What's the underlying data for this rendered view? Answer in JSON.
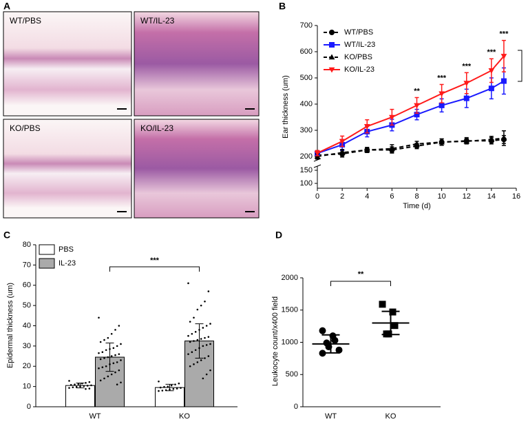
{
  "images": {
    "panel_label": "A",
    "captions": [
      "WT/PBS",
      "WT/IL-23",
      "KO/PBS",
      "KO/IL-23"
    ]
  },
  "chart_data": [
    {
      "type": "line",
      "panel_label": "B",
      "y_label": "Ear thickness (um)",
      "x_label": "Time (d)",
      "x": [
        0,
        2,
        4,
        6,
        8,
        10,
        12,
        14,
        15
      ],
      "xlim": [
        0,
        16
      ],
      "xticks": [
        0,
        2,
        4,
        6,
        8,
        10,
        12,
        14,
        16
      ],
      "ylim": [
        200,
        700
      ],
      "yticks": [
        200,
        300,
        400,
        500,
        600,
        700
      ],
      "ylim_lower": [
        100,
        150
      ],
      "yticks_lower": [
        100,
        150
      ],
      "series": [
        {
          "name": "WT/PBS",
          "color": "#000000",
          "marker": "circle",
          "dashed": true,
          "values": [
            205,
            210,
            225,
            225,
            240,
            255,
            260,
            260,
            265
          ],
          "errors": [
            10,
            12,
            10,
            12,
            10,
            12,
            12,
            12,
            15
          ]
        },
        {
          "name": "WT/IL-23",
          "color": "#1a1aff",
          "marker": "square",
          "dashed": false,
          "values": [
            212,
            245,
            295,
            320,
            360,
            395,
            422,
            460,
            488
          ],
          "errors": [
            10,
            20,
            20,
            22,
            20,
            25,
            35,
            40,
            50
          ]
        },
        {
          "name": "KO/PBS",
          "color": "#000000",
          "marker": "triangle",
          "dashed": true,
          "values": [
            200,
            215,
            225,
            230,
            248,
            255,
            258,
            265,
            270
          ],
          "errors": [
            10,
            12,
            10,
            15,
            10,
            12,
            10,
            12,
            28
          ]
        },
        {
          "name": "KO/IL-23",
          "color": "#ff1a1a",
          "marker": "triangle-down",
          "dashed": false,
          "values": [
            213,
            258,
            315,
            350,
            395,
            440,
            480,
            528,
            583
          ],
          "errors": [
            10,
            20,
            25,
            30,
            30,
            35,
            40,
            45,
            60
          ]
        }
      ],
      "significance": [
        {
          "x": 8,
          "label": "**"
        },
        {
          "x": 10,
          "label": "***"
        },
        {
          "x": 12,
          "label": "***"
        },
        {
          "x": 14,
          "label": "***"
        },
        {
          "x": 15,
          "label": "***"
        }
      ]
    },
    {
      "type": "bar",
      "panel_label": "C",
      "y_label": "Epidermal thickness (um)",
      "categories": [
        "WT",
        "KO"
      ],
      "ylim": [
        0,
        80
      ],
      "yticks": [
        0,
        10,
        20,
        30,
        40,
        50,
        60,
        70,
        80
      ],
      "series": [
        {
          "name": "PBS",
          "color": "#ffffff",
          "values": [
            10.5,
            9.5
          ],
          "errors": [
            1.2,
            1.6
          ],
          "points": [
            [
              12.8,
              12.2,
              11.8,
              11.5,
              11.2,
              11,
              10.8,
              10.6,
              10.4,
              10.2,
              10,
              9.8,
              9.6,
              9.3,
              9,
              8.8
            ],
            [
              12.5,
              11.5,
              11,
              10.5,
              10,
              9.8,
              9.5,
              9.3,
              9,
              8.8,
              8.5,
              8.2,
              8,
              7.8
            ]
          ]
        },
        {
          "name": "IL-23",
          "color": "#aaaaaa",
          "values": [
            24.5,
            32.5
          ],
          "errors": [
            7,
            8.5
          ],
          "points": [
            [
              44,
              40,
              38,
              36,
              34,
              33,
              32,
              31,
              30,
              29,
              28.5,
              28,
              27,
              26.5,
              26,
              25.5,
              25,
              24.5,
              24,
              23.5,
              23,
              22,
              21.5,
              21,
              20,
              19.5,
              19,
              18,
              17,
              16,
              15,
              14,
              13,
              12,
              11
            ],
            [
              61,
              57,
              52,
              50,
              48,
              44,
              42,
              41,
              40,
              39,
              38,
              37,
              36,
              35,
              34.5,
              34,
              33.5,
              33,
              32.5,
              32,
              31,
              30.5,
              30,
              29,
              28,
              27,
              26,
              25,
              24,
              23,
              22,
              21,
              20,
              18,
              16,
              14
            ]
          ]
        }
      ],
      "significance": "***"
    },
    {
      "type": "dot",
      "panel_label": "D",
      "y_label": "Leukocyte count/x400 field",
      "categories": [
        "WT",
        "KO"
      ],
      "ylim": [
        0,
        2000
      ],
      "yticks": [
        0,
        500,
        1000,
        1500,
        2000
      ],
      "groups": [
        {
          "marker": "circle",
          "color": "#000000",
          "mean": 975,
          "sd": 140,
          "values": [
            1180,
            1100,
            1030,
            990,
            930,
            880,
            830
          ]
        },
        {
          "marker": "square",
          "color": "#000000",
          "mean": 1300,
          "sd": 180,
          "values": [
            1590,
            1470,
            1260,
            1130,
            1130
          ]
        }
      ],
      "significance": "**"
    }
  ]
}
